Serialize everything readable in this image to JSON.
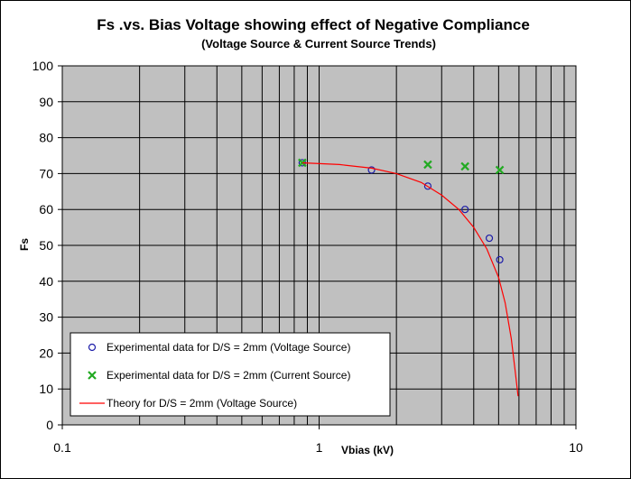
{
  "chart_data": {
    "type": "scatter",
    "title": "Fs .vs. Bias Voltage showing effect of Negative Compliance",
    "subtitle": "(Voltage Source & Current Source Trends)",
    "xlabel": "Vbias (kV)",
    "ylabel": "Fs",
    "x_scale": "log",
    "xlim": [
      0.1,
      10
    ],
    "ylim": [
      0,
      100
    ],
    "x_ticks": [
      "0.1",
      "1",
      "10"
    ],
    "y_ticks": [
      "0",
      "10",
      "20",
      "30",
      "40",
      "50",
      "60",
      "70",
      "80",
      "90",
      "100"
    ],
    "grid": true,
    "plot_background": "#c0c0c0",
    "legend_position": "bottom-left",
    "series": [
      {
        "name": "Experimental data for D/S = 2mm (Voltage Source)",
        "kind": "scatter",
        "marker": "circle",
        "color": "#1c1ca8",
        "x": [
          0.86,
          1.6,
          2.65,
          3.7,
          4.6,
          5.05
        ],
        "y": [
          73,
          71,
          66.5,
          60,
          52,
          46
        ]
      },
      {
        "name": "Experimental data for D/S = 2mm (Current  Source)",
        "kind": "scatter",
        "marker": "x",
        "color": "#22aa22",
        "x": [
          0.86,
          2.65,
          3.7,
          5.05
        ],
        "y": [
          73,
          72.5,
          72,
          71
        ]
      },
      {
        "name": "Theory for D/S = 2mm (Voltage Source)",
        "kind": "line",
        "color": "#ff0000",
        "x": [
          0.86,
          1.2,
          1.6,
          2.0,
          2.5,
          3.0,
          3.5,
          4.0,
          4.5,
          5.0,
          5.3,
          5.6,
          5.8,
          5.95
        ],
        "y": [
          73,
          72.5,
          71.5,
          70,
          67.5,
          64,
          60,
          55,
          49,
          41,
          34,
          24,
          15,
          8
        ]
      }
    ]
  }
}
